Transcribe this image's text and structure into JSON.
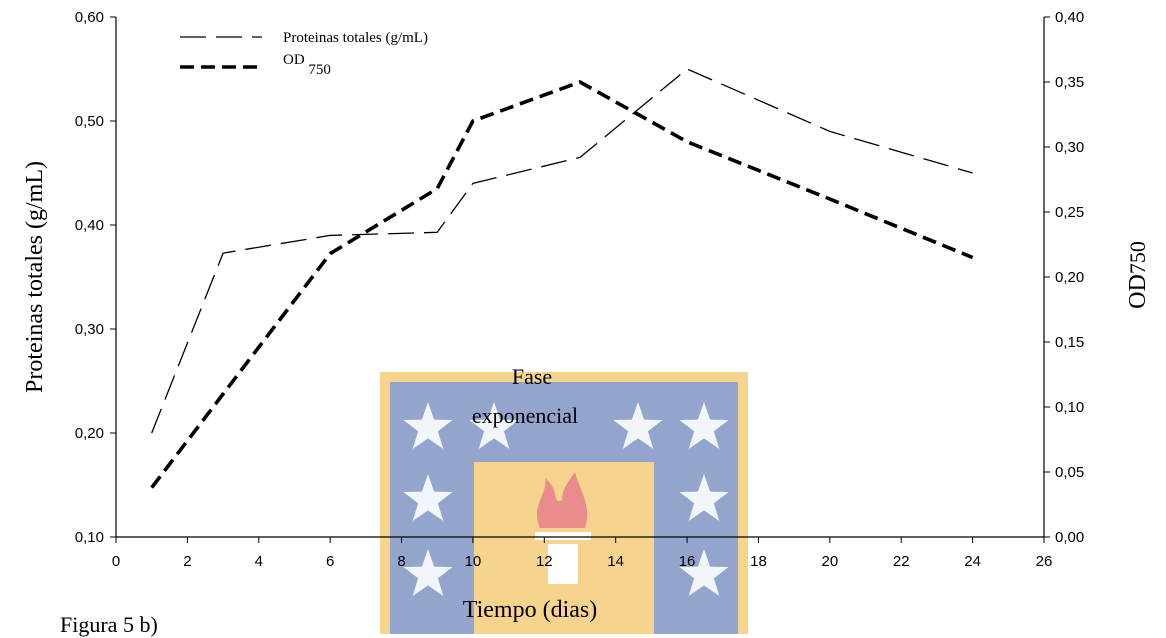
{
  "chart_data": {
    "type": "line",
    "xlabel": "Tiempo (dias)",
    "ylabel_left": "Proteinas totales (g/mL)",
    "ylabel_right": {
      "base": "OD",
      "sub": "750"
    },
    "xlim": [
      0,
      26
    ],
    "ylim_left": [
      0.1,
      0.6
    ],
    "ylim_right": [
      0.0,
      0.4
    ],
    "x_ticks": [
      "0",
      "2",
      "4",
      "6",
      "8",
      "10",
      "12",
      "14",
      "16",
      "18",
      "20",
      "22",
      "24",
      "26"
    ],
    "y_left_ticks": [
      "0,10",
      "0,20",
      "0,30",
      "0,40",
      "0,50",
      "0,60"
    ],
    "y_right_ticks": [
      "0,00",
      "0,05",
      "0,10",
      "0,15",
      "0,20",
      "0,25",
      "0,30",
      "0,35",
      "0,40"
    ],
    "grid": false,
    "legend_position": "top-left",
    "series": [
      {
        "name": "Proteinas totales (g/mL)",
        "axis": "left",
        "style": "thin-dashed",
        "color": "#000000",
        "x": [
          1,
          3,
          6,
          9,
          10,
          13,
          16,
          20,
          24
        ],
        "y": [
          0.2,
          0.373,
          0.39,
          0.393,
          0.44,
          0.465,
          0.55,
          0.49,
          0.45
        ]
      },
      {
        "name": "OD 750",
        "name_base": "OD",
        "name_sub": "750",
        "axis": "right",
        "style": "thick-dashed",
        "color": "#000000",
        "x": [
          1,
          3,
          6,
          9,
          10,
          13,
          16,
          20,
          24
        ],
        "y": [
          0.038,
          0.11,
          0.218,
          0.268,
          0.32,
          0.35,
          0.304,
          0.26,
          0.215
        ]
      }
    ],
    "annotation": {
      "line1": "Fase",
      "line2": "exponencial"
    }
  },
  "caption": "Figura 5 b)",
  "watermark": {
    "colors": [
      "#3b5aa6",
      "#f2b233",
      "#d93030"
    ],
    "description": "stars-and-torch-seal"
  }
}
